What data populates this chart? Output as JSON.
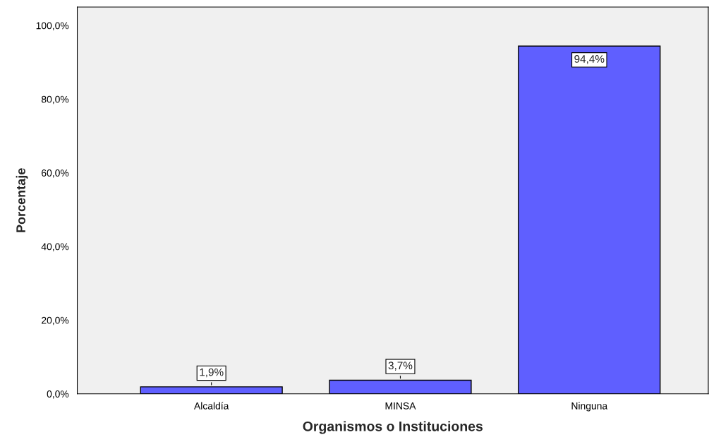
{
  "chart_data": {
    "type": "bar",
    "xlabel": "Organismos o Instituciones",
    "ylabel": "Porcentaje",
    "categories": [
      "Alcaldía",
      "MINSA",
      "Ninguna"
    ],
    "values": [
      1.9,
      3.7,
      94.4
    ],
    "color": "#5f5fff",
    "value_labels": [
      "1,9%",
      "3,7%",
      "94,4%"
    ],
    "ylim": [
      0,
      105
    ],
    "yticks": [
      {
        "value": 0,
        "label": "0,0%"
      },
      {
        "value": 20,
        "label": "20,0%"
      },
      {
        "value": 40,
        "label": "40,0%"
      },
      {
        "value": 60,
        "label": "60,0%"
      },
      {
        "value": 80,
        "label": "80,0%"
      },
      {
        "value": 100,
        "label": "100,0%"
      }
    ],
    "grid": false
  }
}
